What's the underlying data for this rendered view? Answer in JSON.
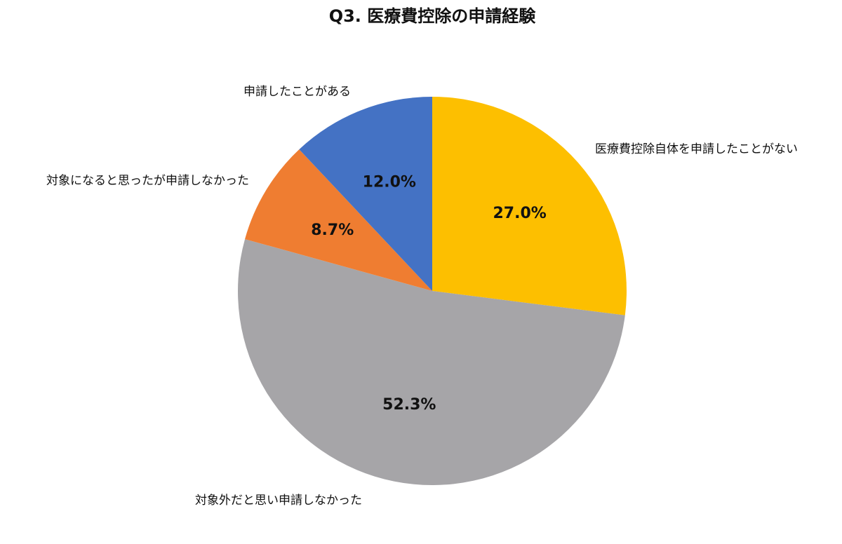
{
  "chart_data": {
    "type": "pie",
    "title": "Q3. 医療費控除の申請経験",
    "categories": [
      "医療費控除自体を申請したことがない",
      "対象外だと思い申請しなかった",
      "対象になると思ったが申請しなかった",
      "申請したことがある"
    ],
    "values": [
      27.0,
      52.3,
      8.7,
      12.0
    ],
    "value_labels": [
      "27.0%",
      "52.3%",
      "8.7%",
      "12.0%"
    ],
    "colors": [
      "#fdbf00",
      "#a6a5a8",
      "#ef7d31",
      "#4472c4"
    ]
  }
}
